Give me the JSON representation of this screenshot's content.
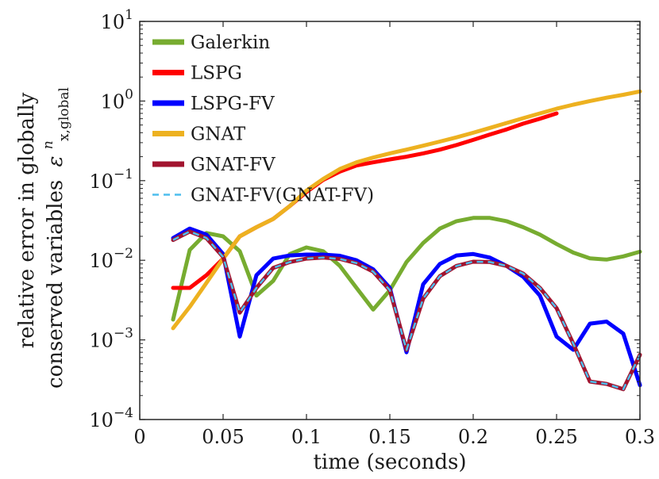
{
  "chart_data": {
    "type": "line",
    "yscale": "log",
    "xlabel": "time (seconds)",
    "ylabel_line1": "relative error in globally",
    "ylabel_line2": "conserved variables",
    "ylabel_symbol": "ε",
    "ylabel_sup": "n",
    "ylabel_sub": "x,global",
    "xlim": [
      0,
      0.3
    ],
    "ylim": [
      0.0001,
      10
    ],
    "xticks": [
      {
        "value": 0,
        "label": "0"
      },
      {
        "value": 0.05,
        "label": "0.05"
      },
      {
        "value": 0.1,
        "label": "0.1"
      },
      {
        "value": 0.15,
        "label": "0.15"
      },
      {
        "value": 0.2,
        "label": "0.2"
      },
      {
        "value": 0.25,
        "label": "0.25"
      },
      {
        "value": 0.3,
        "label": "0.3"
      }
    ],
    "yticks": [
      {
        "value": 10,
        "base": "10",
        "exp": "1"
      },
      {
        "value": 1,
        "base": "10",
        "exp": "0"
      },
      {
        "value": 0.1,
        "base": "10",
        "exp": "−1"
      },
      {
        "value": 0.01,
        "base": "10",
        "exp": "−2"
      },
      {
        "value": 0.001,
        "base": "10",
        "exp": "−3"
      },
      {
        "value": 0.0001,
        "base": "10",
        "exp": "−4"
      }
    ],
    "legend_position": "top-left",
    "series": [
      {
        "name": "Galerkin",
        "color": "#77ac30",
        "dashed": false,
        "x": [
          0.02,
          0.03,
          0.04,
          0.05,
          0.06,
          0.07,
          0.08,
          0.09,
          0.1,
          0.11,
          0.12,
          0.13,
          0.14,
          0.15,
          0.16,
          0.17,
          0.18,
          0.19,
          0.2,
          0.21,
          0.22,
          0.23,
          0.24,
          0.25,
          0.26,
          0.27,
          0.28,
          0.29,
          0.3
        ],
        "y": [
          0.0018,
          0.0135,
          0.022,
          0.02,
          0.013,
          0.0036,
          0.0055,
          0.012,
          0.0145,
          0.013,
          0.0085,
          0.0045,
          0.0024,
          0.0042,
          0.0095,
          0.0165,
          0.025,
          0.031,
          0.034,
          0.034,
          0.031,
          0.026,
          0.021,
          0.016,
          0.0125,
          0.0106,
          0.0102,
          0.0112,
          0.0128
        ]
      },
      {
        "name": "LSPG",
        "color": "#ff0000",
        "dashed": false,
        "x": [
          0.02,
          0.03,
          0.04,
          0.05,
          0.06,
          0.07,
          0.08,
          0.09,
          0.1,
          0.11,
          0.12,
          0.13,
          0.14,
          0.15,
          0.16,
          0.17,
          0.18,
          0.19,
          0.2,
          0.21,
          0.22,
          0.23,
          0.24,
          0.25
        ],
        "y": [
          0.0045,
          0.0045,
          0.0065,
          0.0105,
          0.02,
          0.026,
          0.033,
          0.048,
          0.072,
          0.102,
          0.13,
          0.155,
          0.17,
          0.185,
          0.2,
          0.22,
          0.245,
          0.28,
          0.325,
          0.38,
          0.44,
          0.52,
          0.6,
          0.7
        ]
      },
      {
        "name": "LSPG-FV",
        "color": "#0000ff",
        "dashed": false,
        "x": [
          0.02,
          0.03,
          0.04,
          0.05,
          0.06,
          0.07,
          0.08,
          0.09,
          0.1,
          0.11,
          0.12,
          0.13,
          0.14,
          0.15,
          0.16,
          0.17,
          0.18,
          0.19,
          0.2,
          0.21,
          0.22,
          0.23,
          0.24,
          0.25,
          0.26,
          0.27,
          0.28,
          0.29,
          0.3
        ],
        "y": [
          0.019,
          0.025,
          0.021,
          0.012,
          0.0011,
          0.0065,
          0.0105,
          0.0115,
          0.0118,
          0.0118,
          0.0114,
          0.01,
          0.0077,
          0.0045,
          0.0007,
          0.005,
          0.009,
          0.0115,
          0.012,
          0.0108,
          0.0085,
          0.0062,
          0.0036,
          0.0011,
          0.00075,
          0.0016,
          0.0017,
          0.0012,
          0.00027
        ]
      },
      {
        "name": "GNAT",
        "color": "#edb120",
        "dashed": false,
        "x": [
          0.02,
          0.03,
          0.04,
          0.05,
          0.06,
          0.07,
          0.08,
          0.09,
          0.1,
          0.11,
          0.12,
          0.13,
          0.14,
          0.15,
          0.16,
          0.17,
          0.18,
          0.19,
          0.2,
          0.21,
          0.22,
          0.23,
          0.24,
          0.25,
          0.26,
          0.27,
          0.28,
          0.29,
          0.3
        ],
        "y": [
          0.0014,
          0.0026,
          0.0052,
          0.0105,
          0.02,
          0.026,
          0.033,
          0.048,
          0.075,
          0.105,
          0.14,
          0.17,
          0.195,
          0.22,
          0.245,
          0.275,
          0.31,
          0.35,
          0.4,
          0.46,
          0.53,
          0.61,
          0.7,
          0.8,
          0.9,
          1.0,
          1.1,
          1.2,
          1.32
        ]
      },
      {
        "name": "GNAT-FV",
        "color": "#a2142f",
        "dashed": false,
        "x": [
          0.02,
          0.03,
          0.04,
          0.05,
          0.06,
          0.07,
          0.08,
          0.09,
          0.1,
          0.11,
          0.12,
          0.13,
          0.14,
          0.15,
          0.16,
          0.17,
          0.18,
          0.19,
          0.2,
          0.21,
          0.22,
          0.23,
          0.24,
          0.25,
          0.26,
          0.27,
          0.28,
          0.29,
          0.3
        ],
        "y": [
          0.018,
          0.023,
          0.019,
          0.011,
          0.0022,
          0.0045,
          0.008,
          0.0095,
          0.0105,
          0.0108,
          0.0104,
          0.0092,
          0.0072,
          0.0042,
          0.00075,
          0.0033,
          0.0063,
          0.0085,
          0.0096,
          0.0095,
          0.0085,
          0.0068,
          0.0045,
          0.0025,
          0.0009,
          0.0003,
          0.00028,
          0.00024,
          0.00065
        ]
      },
      {
        "name": "GNAT-FV(GNAT-FV)",
        "color": "#4dbeee",
        "dashed": true,
        "x": [
          0.02,
          0.03,
          0.04,
          0.05,
          0.06,
          0.07,
          0.08,
          0.09,
          0.1,
          0.11,
          0.12,
          0.13,
          0.14,
          0.15,
          0.16,
          0.17,
          0.18,
          0.19,
          0.2,
          0.21,
          0.22,
          0.23,
          0.24,
          0.25,
          0.26,
          0.27,
          0.28,
          0.29,
          0.3
        ],
        "y": [
          0.018,
          0.023,
          0.019,
          0.011,
          0.0022,
          0.0045,
          0.008,
          0.0095,
          0.0105,
          0.0108,
          0.0104,
          0.0092,
          0.0072,
          0.0042,
          0.00075,
          0.0033,
          0.0063,
          0.0085,
          0.0096,
          0.0095,
          0.0085,
          0.0068,
          0.0045,
          0.0025,
          0.0009,
          0.0003,
          0.00028,
          0.00024,
          0.00065
        ]
      }
    ]
  }
}
